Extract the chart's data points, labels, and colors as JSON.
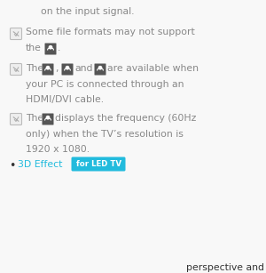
{
  "bg_color": "#f8f8f8",
  "text_color": "#888888",
  "dark_text_color": "#333333",
  "text_3d_color": "#22bbdd",
  "badge_bg_color": "#22bbdd",
  "badge_text_color": "#ffffff",
  "badge_text": "for LED TV",
  "note_icon_border": "#bbbbbb",
  "note_icon_fill": "#f0f0f0",
  "dark_icon_color": "#555555",
  "line1_text": "on the input signal.",
  "line2_text": "Some file formats may not support",
  "line3a": "the",
  "line3b": ".",
  "line4a": "The",
  "line4b": ",",
  "line4c": "and",
  "line4d": "are available when",
  "line5": "your PC is connected through an",
  "line6": "HDMI/DVI cable.",
  "line7a": "The",
  "line7b": "displays the frequency (60Hz",
  "line8": "only) when the TV’s resolution is",
  "line9": "1920 x 1080.",
  "line10": "3D Effect",
  "line11": "perspective and",
  "fontsize": 7.8,
  "fontsize_badge": 6.2,
  "fontsize_bullet": 9.0
}
